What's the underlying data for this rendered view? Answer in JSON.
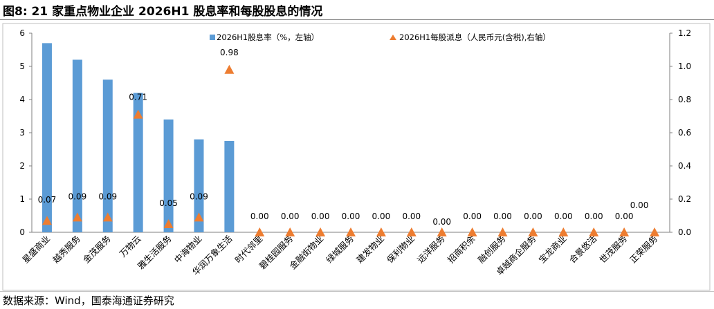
{
  "figure": {
    "title": "图8:  21 家重点物业企业 2026H1 股息率和每股股息的情况",
    "source": "数据来源：Wind，国泰海通证券研究"
  },
  "chart_data": {
    "type": "bar",
    "categories": [
      "星盛商业",
      "越秀服务",
      "金茂服务",
      "万物云",
      "雅生活服务",
      "中海物业",
      "华润万象生活",
      "时代邻里",
      "碧桂园服务",
      "金融街物业",
      "绿城服务",
      "建发物业",
      "保利物业",
      "远洋服务",
      "招商积余",
      "融创服务",
      "卓越商企服务",
      "宝龙商业",
      "合景悠活",
      "世茂服务",
      "正荣服务"
    ],
    "series": [
      {
        "name": "2026H1股息率（%，左轴）",
        "type": "bar",
        "axis": "left",
        "color": "#5b9bd5",
        "values": [
          5.7,
          5.2,
          4.6,
          4.2,
          3.4,
          2.8,
          2.75,
          null,
          null,
          null,
          null,
          null,
          null,
          null,
          null,
          null,
          null,
          null,
          null,
          null,
          null
        ]
      },
      {
        "name": "2026H1每股派息（人民币元(含税),右轴）",
        "type": "scatter",
        "marker": "triangle",
        "axis": "right",
        "color": "#ed7d31",
        "values": [
          0.07,
          0.09,
          0.09,
          0.71,
          0.05,
          0.09,
          0.98,
          0.0,
          0.0,
          0.0,
          0.0,
          0.0,
          0.0,
          0.0,
          0.0,
          0.0,
          0.0,
          0.0,
          0.0,
          0.0,
          0.0
        ],
        "labels": [
          "0.07",
          "0.09",
          "0.09",
          "0.71",
          "0.05",
          "0.09",
          "0.98",
          "0.00",
          "0.00",
          "0.00",
          "0.00",
          "0.00",
          "0.00",
          "0.00",
          "0.00",
          "0.00",
          "0.00",
          "0.00",
          "0.00",
          "0.00",
          "0.00"
        ]
      }
    ],
    "y_left": {
      "min": 0,
      "max": 6,
      "ticks": [
        "0",
        "1",
        "2",
        "3",
        "4",
        "5",
        "6"
      ]
    },
    "y_right": {
      "min": 0,
      "max": 1.2,
      "ticks": [
        "0.0",
        "0.2",
        "0.4",
        "0.6",
        "0.8",
        "1.0",
        "1.2"
      ]
    },
    "legend": "top",
    "grid": false
  }
}
